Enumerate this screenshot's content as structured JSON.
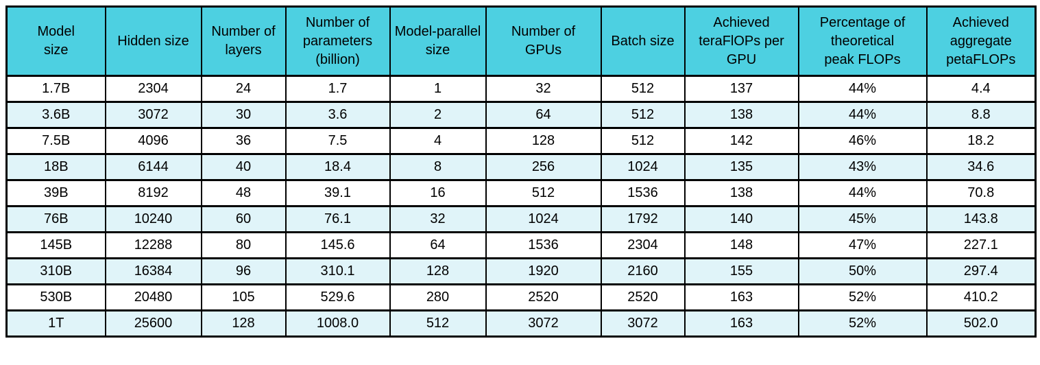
{
  "table": {
    "header_display": [
      "Model\nsize",
      "Hidden size",
      "Number of\nlayers",
      "Number of\nparameters\n(billion)",
      "Model-parallel\nsize",
      "Number of\nGPUs",
      "Batch size",
      "Achieved\nteraFlOPs per\nGPU",
      "Percentage of\ntheoretical\npeak FLOPs",
      "Achieved\naggregate\npetaFLOPs"
    ]
  },
  "chart_data": {
    "type": "table",
    "title": "",
    "columns": [
      "Model size",
      "Hidden size",
      "Number of layers",
      "Number of parameters (billion)",
      "Model-parallel size",
      "Number of GPUs",
      "Batch size",
      "Achieved teraFlOPs per GPU",
      "Percentage of theoretical peak FLOPs",
      "Achieved aggregate petaFLOPs"
    ],
    "rows": [
      [
        "1.7B",
        "2304",
        "24",
        "1.7",
        "1",
        "32",
        "512",
        "137",
        "44%",
        "4.4"
      ],
      [
        "3.6B",
        "3072",
        "30",
        "3.6",
        "2",
        "64",
        "512",
        "138",
        "44%",
        "8.8"
      ],
      [
        "7.5B",
        "4096",
        "36",
        "7.5",
        "4",
        "128",
        "512",
        "142",
        "46%",
        "18.2"
      ],
      [
        "18B",
        "6144",
        "40",
        "18.4",
        "8",
        "256",
        "1024",
        "135",
        "43%",
        "34.6"
      ],
      [
        "39B",
        "8192",
        "48",
        "39.1",
        "16",
        "512",
        "1536",
        "138",
        "44%",
        "70.8"
      ],
      [
        "76B",
        "10240",
        "60",
        "76.1",
        "32",
        "1024",
        "1792",
        "140",
        "45%",
        "143.8"
      ],
      [
        "145B",
        "12288",
        "80",
        "145.6",
        "64",
        "1536",
        "2304",
        "148",
        "47%",
        "227.1"
      ],
      [
        "310B",
        "16384",
        "96",
        "310.1",
        "128",
        "1920",
        "2160",
        "155",
        "50%",
        "297.4"
      ],
      [
        "530B",
        "20480",
        "105",
        "529.6",
        "280",
        "2520",
        "2520",
        "163",
        "52%",
        "410.2"
      ],
      [
        "1T",
        "25600",
        "128",
        "1008.0",
        "512",
        "3072",
        "3072",
        "163",
        "52%",
        "502.0"
      ]
    ]
  },
  "colors": {
    "header_bg": "#4dd0e1",
    "row_bg": "#ffffff",
    "row_alt_bg": "#e0f4f9",
    "border": "#000000",
    "text": "#000000",
    "page_bg": "#ffffff"
  }
}
